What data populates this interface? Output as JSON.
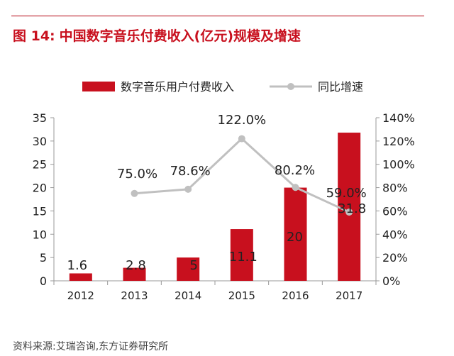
{
  "figure": {
    "number": "图 14:",
    "title": "中国数字音乐付费收入(亿元)规模及增速"
  },
  "source": "资料来源:艾瑞咨询,东方证券研究所",
  "chart_data": {
    "type": "bar",
    "categories": [
      "2012",
      "2013",
      "2014",
      "2015",
      "2016",
      "2017"
    ],
    "series": [
      {
        "name": "数字音乐用户付费收入",
        "type": "bar",
        "axis": "left",
        "color": "#c8101e",
        "values": [
          1.6,
          2.8,
          5,
          11.1,
          20,
          31.8
        ],
        "labels": [
          "1.6",
          "2.8",
          "5",
          "11.1",
          "20",
          "31.8"
        ]
      },
      {
        "name": "同比增速",
        "type": "line",
        "axis": "right",
        "color": "#c0c0c0",
        "values": [
          null,
          75.0,
          78.6,
          122.0,
          80.2,
          59.0
        ],
        "labels": [
          "",
          "75.0%",
          "78.6%",
          "122.0%",
          "80.2%",
          "59.0%"
        ]
      }
    ],
    "left_axis": {
      "ylim": [
        0,
        35
      ],
      "ticks": [
        "0",
        "5",
        "10",
        "15",
        "20",
        "25",
        "30",
        "35"
      ]
    },
    "right_axis": {
      "ylim": [
        0,
        140
      ],
      "ticks": [
        "0%",
        "20%",
        "40%",
        "60%",
        "80%",
        "100%",
        "120%",
        "140%"
      ]
    },
    "grid": false,
    "legend": "top"
  }
}
